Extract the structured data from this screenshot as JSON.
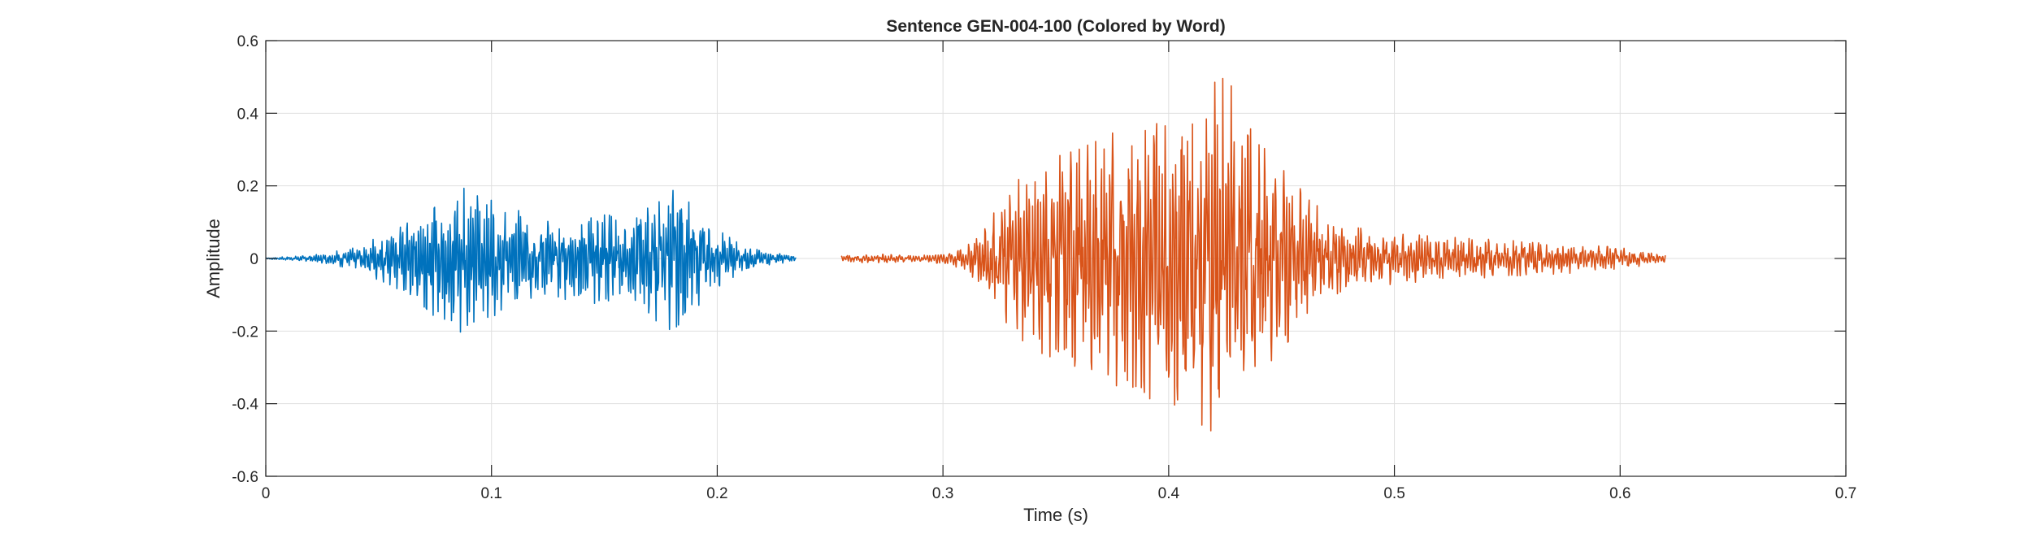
{
  "chart_data": {
    "type": "line",
    "title": "Sentence GEN-004-100 (Colored by Word)",
    "xlabel": "Time (s)",
    "ylabel": "Amplitude",
    "xlim": [
      0,
      0.7
    ],
    "ylim": [
      -0.6,
      0.6
    ],
    "xticks": [
      0,
      0.1,
      0.2,
      0.3,
      0.4,
      0.5,
      0.6,
      0.7
    ],
    "xtick_labels": [
      "0",
      "0.1",
      "0.2",
      "0.3",
      "0.4",
      "0.5",
      "0.6",
      "0.7"
    ],
    "yticks": [
      -0.6,
      -0.4,
      -0.2,
      0,
      0.2,
      0.4,
      0.6
    ],
    "ytick_labels": [
      "-0.6",
      "-0.4",
      "-0.2",
      "0",
      "0.2",
      "0.4",
      "0.6"
    ],
    "grid": true,
    "series": [
      {
        "color": "#0072BD",
        "x": [
          0.0,
          0.02,
          0.04,
          0.06,
          0.07,
          0.08,
          0.085,
          0.09,
          0.1,
          0.11,
          0.12,
          0.13,
          0.14,
          0.15,
          0.16,
          0.17,
          0.175,
          0.18,
          0.19,
          0.2,
          0.21,
          0.22,
          0.23,
          0.235
        ],
        "envelope": [
          0.002,
          0.008,
          0.03,
          0.09,
          0.14,
          0.18,
          0.21,
          0.18,
          0.16,
          0.14,
          0.1,
          0.11,
          0.12,
          0.13,
          0.14,
          0.16,
          0.18,
          0.2,
          0.14,
          0.08,
          0.04,
          0.02,
          0.012,
          0.008
        ]
      },
      {
        "color": "#D95319",
        "x": [
          0.255,
          0.27,
          0.29,
          0.3,
          0.31,
          0.32,
          0.33,
          0.34,
          0.35,
          0.36,
          0.37,
          0.38,
          0.39,
          0.4,
          0.41,
          0.42,
          0.425,
          0.43,
          0.44,
          0.45,
          0.46,
          0.47,
          0.48,
          0.5,
          0.52,
          0.55,
          0.58,
          0.6,
          0.62
        ],
        "envelope": [
          0.01,
          0.012,
          0.008,
          0.015,
          0.03,
          0.1,
          0.2,
          0.25,
          0.28,
          0.3,
          0.33,
          0.36,
          0.38,
          0.42,
          0.44,
          0.48,
          0.54,
          0.42,
          0.32,
          0.25,
          0.18,
          0.12,
          0.09,
          0.07,
          0.06,
          0.05,
          0.04,
          0.03,
          0.01
        ]
      }
    ]
  }
}
